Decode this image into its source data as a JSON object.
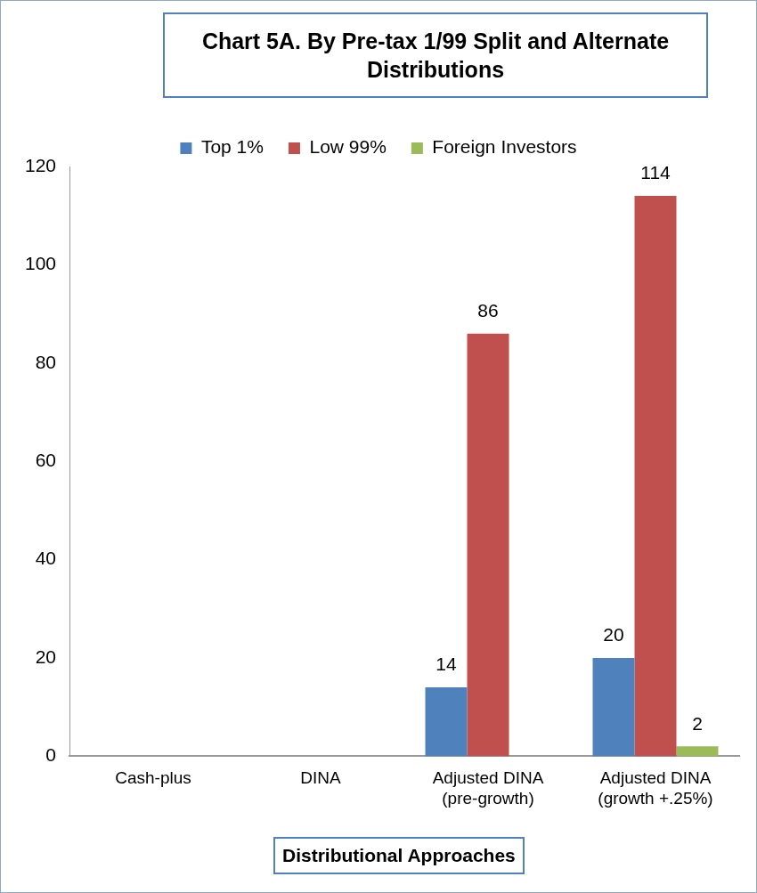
{
  "chart_data": {
    "type": "bar",
    "title": "Chart 5A.  By Pre-tax 1/99 Split and Alternate Distributions",
    "xlabel": "Distributional Approaches",
    "categories": [
      "Cash-plus",
      "DINA",
      "Adjusted DINA (pre-growth)",
      "Adjusted DINA (growth +.25%)"
    ],
    "series": [
      {
        "name": "Top 1%",
        "color": "#4f81bd",
        "values": [
          null,
          null,
          14,
          20
        ]
      },
      {
        "name": "Low 99%",
        "color": "#c0504d",
        "values": [
          null,
          null,
          86,
          114
        ]
      },
      {
        "name": "Foreign Investors",
        "color": "#9bbb59",
        "values": [
          null,
          null,
          null,
          2
        ]
      }
    ],
    "ylim": [
      0,
      120
    ],
    "yticks": [
      0,
      20,
      40,
      60,
      80,
      100,
      120
    ],
    "grid": false,
    "legend": "top",
    "data_labels": true
  }
}
